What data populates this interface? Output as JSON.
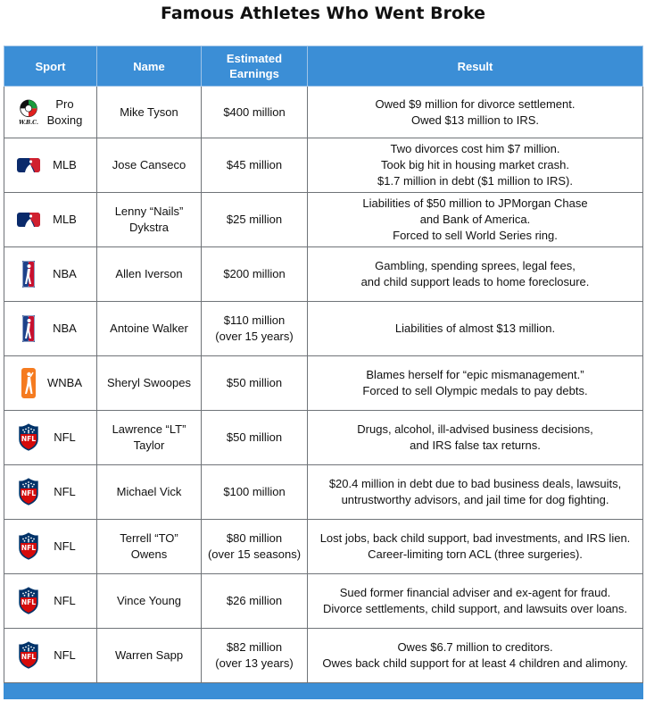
{
  "title": "Famous Athletes Who Went Broke",
  "headers": {
    "sport": "Sport",
    "name": "Name",
    "earnings": [
      "Estimated",
      "Earnings"
    ],
    "result": "Result"
  },
  "rows": [
    {
      "logo": "wbc-logo-icon",
      "sport": [
        "Pro",
        "Boxing"
      ],
      "name": [
        "Mike Tyson"
      ],
      "earnings": [
        "$400 million"
      ],
      "result": [
        "Owed $9 million for divorce settlement.",
        "Owed $13 million to IRS."
      ]
    },
    {
      "logo": "mlb-logo-icon",
      "sport": [
        "MLB"
      ],
      "name": [
        "Jose Canseco"
      ],
      "earnings": [
        "$45 million"
      ],
      "result": [
        "Two divorces cost him $7 million.",
        "Took big hit in housing market crash.",
        "$1.7 million in debt ($1 million to IRS)."
      ]
    },
    {
      "logo": "mlb-logo-icon",
      "sport": [
        "MLB"
      ],
      "name": [
        "Lenny “Nails”",
        "Dykstra"
      ],
      "earnings": [
        "$25 million"
      ],
      "result": [
        "Liabilities of $50 million to JPMorgan Chase",
        "and Bank of America.",
        "Forced to sell World Series ring."
      ]
    },
    {
      "logo": "nba-logo-icon",
      "sport": [
        "NBA"
      ],
      "name": [
        "Allen Iverson"
      ],
      "earnings": [
        "$200 million"
      ],
      "result": [
        "Gambling, spending sprees, legal fees,",
        "and child support leads to home foreclosure."
      ]
    },
    {
      "logo": "nba-logo-icon",
      "sport": [
        "NBA"
      ],
      "name": [
        "Antoine Walker"
      ],
      "earnings": [
        "$110 million",
        "(over 15 years)"
      ],
      "result": [
        "Liabilities of almost $13 million."
      ]
    },
    {
      "logo": "wnba-logo-icon",
      "sport": [
        "WNBA"
      ],
      "name": [
        "Sheryl Swoopes"
      ],
      "earnings": [
        "$50 million"
      ],
      "result": [
        "Blames herself for “epic mismanagement.”",
        "Forced to sell Olympic medals to pay debts."
      ]
    },
    {
      "logo": "nfl-logo-icon",
      "sport": [
        "NFL"
      ],
      "name": [
        "Lawrence “LT”",
        "Taylor"
      ],
      "earnings": [
        "$50 million"
      ],
      "result": [
        "Drugs, alcohol, ill-advised business decisions,",
        "and IRS false tax returns."
      ]
    },
    {
      "logo": "nfl-logo-icon",
      "sport": [
        "NFL"
      ],
      "name": [
        "Michael Vick"
      ],
      "earnings": [
        "$100 million"
      ],
      "result": [
        "$20.4 million in debt due to bad business deals, lawsuits,",
        "untrustworthy advisors, and jail time for dog fighting."
      ]
    },
    {
      "logo": "nfl-logo-icon",
      "sport": [
        "NFL"
      ],
      "name": [
        "Terrell “TO”",
        "Owens"
      ],
      "earnings": [
        "$80 million",
        "(over 15 seasons)"
      ],
      "result": [
        "Lost jobs, back child support, bad investments, and IRS lien.",
        "Career-limiting torn ACL (three surgeries)."
      ]
    },
    {
      "logo": "nfl-logo-icon",
      "sport": [
        "NFL"
      ],
      "name": [
        "Vince Young"
      ],
      "earnings": [
        "$26 million"
      ],
      "result": [
        "Sued former financial adviser and ex-agent for fraud.",
        "Divorce settlements, child support, and lawsuits over loans."
      ]
    },
    {
      "logo": "nfl-logo-icon",
      "sport": [
        "NFL"
      ],
      "name": [
        "Warren Sapp"
      ],
      "earnings": [
        "$82 million",
        "(over 13 years)"
      ],
      "result": [
        "Owes $6.7 million to creditors.",
        "Owes back child support for at least 4 children and alimony."
      ]
    }
  ],
  "logos": {
    "wbc": "W.B.C.",
    "nfl": "NFL"
  },
  "colors": {
    "header_bg": "#3b8ed6",
    "border": "#6f7378"
  }
}
